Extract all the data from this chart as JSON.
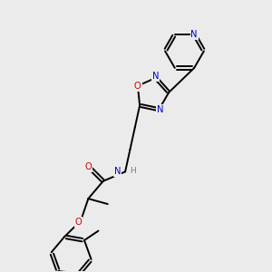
{
  "bg_color": "#ebebeb",
  "atom_colors": {
    "C": "#000000",
    "N": "#0000cc",
    "O": "#cc0000",
    "H": "#708090"
  },
  "lw": 1.4,
  "fs": 7.2
}
